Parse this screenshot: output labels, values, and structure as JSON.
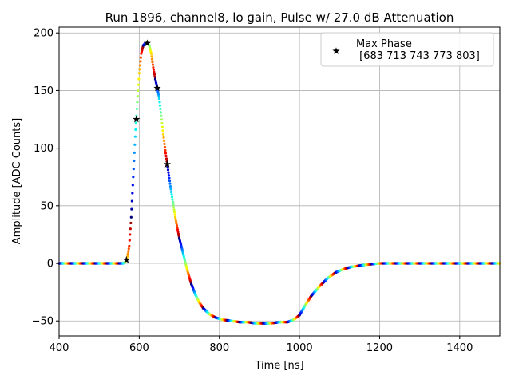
{
  "chart_data": {
    "type": "scatter",
    "title": "Run 1896, channel8, lo gain, Pulse w/ 27.0 dB Attenuation",
    "xlabel": "Time [ns]",
    "ylabel": "Amplitude [ADC Counts]",
    "xlim": [
      400,
      1500
    ],
    "ylim": [
      -63,
      205
    ],
    "xticks": [
      400,
      600,
      800,
      1000,
      1200,
      1400
    ],
    "yticks": [
      -50,
      0,
      50,
      100,
      150,
      200
    ],
    "grid": true,
    "legend_position": "top-right",
    "colormap": "jet",
    "waveform": {
      "x": [
        400,
        560,
        565,
        570,
        575,
        580,
        585,
        590,
        595,
        600,
        605,
        610,
        615,
        620,
        625,
        630,
        635,
        640,
        645,
        650,
        655,
        660,
        665,
        670,
        680,
        690,
        700,
        710,
        720,
        730,
        740,
        750,
        760,
        775,
        790,
        810,
        830,
        850,
        870,
        890,
        910,
        930,
        950,
        970,
        985,
        1000,
        1015,
        1030,
        1050,
        1070,
        1090,
        1110,
        1130,
        1150,
        1170,
        1200,
        1250,
        1300,
        1400,
        1500
      ],
      "y": [
        0,
        0,
        1,
        4,
        15,
        40,
        75,
        110,
        140,
        165,
        182,
        189,
        191,
        191,
        189,
        182,
        170,
        160,
        152,
        143,
        128,
        112,
        98,
        86,
        62,
        40,
        22,
        8,
        -6,
        -18,
        -27,
        -34,
        -39,
        -44,
        -47,
        -49,
        -50,
        -51,
        -51,
        -52,
        -52,
        -52,
        -51,
        -51,
        -49,
        -45,
        -36,
        -28,
        -20,
        -13,
        -8,
        -5,
        -3,
        -2,
        -1,
        0,
        0,
        0,
        0,
        0
      ]
    },
    "series": [
      {
        "name": "Max Phase\n [683 713 743 773 803]",
        "marker": "star",
        "x": [
          568,
          593,
          620,
          645,
          670
        ],
        "y": [
          3,
          125,
          191,
          152,
          86
        ]
      }
    ]
  },
  "legend": {
    "line1": "Max Phase",
    "line2": " [683 713 743 773 803]"
  }
}
